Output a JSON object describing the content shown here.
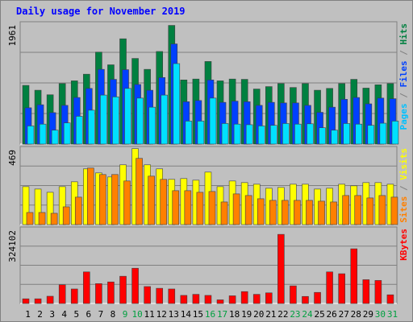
{
  "chart_data": {
    "type": "bar",
    "title": "Daily usage for November 2019",
    "categories": [
      "1",
      "2",
      "3",
      "4",
      "5",
      "6",
      "7",
      "8",
      "9",
      "10",
      "11",
      "12",
      "13",
      "14",
      "15",
      "16",
      "17",
      "18",
      "19",
      "20",
      "21",
      "22",
      "23",
      "24",
      "25",
      "26",
      "27",
      "28",
      "29",
      "30",
      "31"
    ],
    "weekend_days": [
      "9",
      "10",
      "16",
      "17",
      "23",
      "24",
      "30",
      "31"
    ],
    "panels": [
      {
        "name": "hits-files-pages",
        "ymax_label": "1961",
        "ymax": 1961,
        "right_label_parts": [
          {
            "text": "Pages",
            "color": "#00c0ff"
          },
          {
            "text": " / ",
            "color": "#808080"
          },
          {
            "text": "Files",
            "color": "#0040ff"
          },
          {
            "text": " / ",
            "color": "#808080"
          },
          {
            "text": "Hits",
            "color": "#008040"
          }
        ],
        "series": [
          {
            "name": "Hits",
            "color": "#008040",
            "values": [
              970,
              890,
              815,
              1000,
              1045,
              1155,
              1520,
              1310,
              1740,
              1415,
              1235,
              1530,
              1961,
              1060,
              1075,
              1365,
              1045,
              1075,
              1070,
              910,
              950,
              1000,
              935,
              1000,
              890,
              920,
              1000,
              1070,
              925,
              980,
              1000
            ]
          },
          {
            "name": "Files",
            "color": "#0040ff",
            "values": [
              600,
              650,
              520,
              640,
              770,
              920,
              1235,
              1070,
              1230,
              985,
              890,
              1100,
              1655,
              700,
              720,
              1060,
              690,
              710,
              700,
              640,
              690,
              680,
              680,
              640,
              525,
              610,
              740,
              770,
              665,
              760,
              750
            ]
          },
          {
            "name": "Pages",
            "color": "#00e0ff",
            "values": [
              300,
              330,
              230,
              350,
              460,
              560,
              810,
              780,
              920,
              760,
              610,
              810,
              1330,
              380,
              380,
              760,
              340,
              330,
              320,
              300,
              310,
              340,
              330,
              335,
              270,
              230,
              340,
              330,
              310,
              345,
              380
            ]
          }
        ]
      },
      {
        "name": "visits-sites",
        "ymax_label": "469",
        "ymax": 469,
        "right_label_parts": [
          {
            "text": "Sites",
            "color": "#ff8000"
          },
          {
            "text": " / ",
            "color": "#808080"
          },
          {
            "text": "Visits",
            "color": "#ffff00"
          }
        ],
        "series": [
          {
            "name": "Visits",
            "color": "#ffff00",
            "values": [
              235,
              220,
              200,
              235,
              265,
              345,
              320,
              295,
              370,
              470,
              370,
              345,
              280,
              285,
              275,
              325,
              235,
              270,
              260,
              250,
              225,
              230,
              250,
              250,
              220,
              225,
              250,
              240,
              260,
              260,
              250
            ]
          },
          {
            "name": "Sites",
            "color": "#ff8000",
            "values": [
              75,
              75,
              70,
              110,
              170,
              350,
              310,
              310,
              270,
              410,
              300,
              280,
              210,
              210,
              200,
              205,
              140,
              190,
              180,
              160,
              150,
              150,
              150,
              150,
              145,
              140,
              180,
              180,
              165,
              180,
              170
            ]
          }
        ]
      },
      {
        "name": "kbytes",
        "ymax_label": "324102",
        "ymax": 324102,
        "right_label_parts": [
          {
            "text": "KBytes",
            "color": "#ff0000"
          }
        ],
        "series": [
          {
            "name": "KBytes",
            "color": "#ff0000",
            "values": [
              20500,
              20500,
              31700,
              81800,
              63400,
              138000,
              86800,
              94200,
              119000,
              154000,
              74000,
              66400,
              63400,
              35400,
              40000,
              35400,
              15900,
              33600,
              52000,
              40000,
              46500,
              302000,
              77000,
              30800,
              48500,
              138000,
              130000,
              239000,
              104000,
              100700,
              38000
            ]
          }
        ]
      }
    ],
    "x_label_colors": {
      "weekday": "#000000",
      "weekend": "#00a040"
    }
  }
}
